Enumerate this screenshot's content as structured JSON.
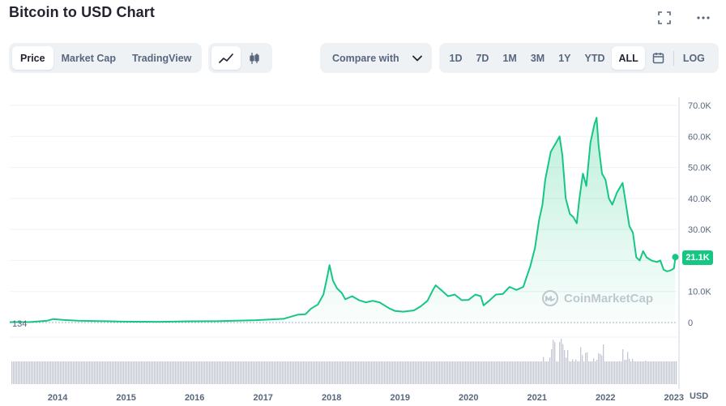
{
  "header": {
    "title": "Bitcoin to USD Chart",
    "icons": {
      "fullscreen": "fullscreen-icon",
      "more": "more-icon"
    }
  },
  "toolbar": {
    "view_tabs": [
      {
        "label": "Price",
        "active": true
      },
      {
        "label": "Market Cap",
        "active": false
      },
      {
        "label": "TradingView",
        "active": false
      }
    ],
    "chart_style_icons": [
      "line-chart-icon",
      "candlestick-icon"
    ],
    "compare_label": "Compare with",
    "ranges": [
      {
        "label": "1D",
        "active": false
      },
      {
        "label": "7D",
        "active": false
      },
      {
        "label": "1M",
        "active": false
      },
      {
        "label": "3M",
        "active": false
      },
      {
        "label": "1Y",
        "active": false
      },
      {
        "label": "YTD",
        "active": false
      },
      {
        "label": "ALL",
        "active": true
      }
    ],
    "calendar_icon": "calendar-icon",
    "log_label": "LOG"
  },
  "watermark": {
    "text": "CoinMarketCap",
    "icon": "coinmarketcap-logo-icon"
  },
  "colors": {
    "line": "#16c784",
    "area_top": "#16c784",
    "volume": "#c3c8d3",
    "grid": "#eff2f5",
    "axis_text": "#58667e"
  },
  "chart_data": {
    "type": "area",
    "currency_label": "USD",
    "start_label": "134",
    "current_price_label": "21.1K",
    "current_price": 21100,
    "ylim": [
      0,
      70000
    ],
    "y_ticks": [
      0,
      10000,
      20000,
      30000,
      40000,
      50000,
      60000,
      70000
    ],
    "y_tick_labels": [
      "0",
      "10.0K",
      "20.0K",
      "30.0K",
      "40.0K",
      "50.0K",
      "60.0K",
      "70.0K"
    ],
    "xlim": [
      2013.3,
      2023.05
    ],
    "x_ticks": [
      2014,
      2015,
      2016,
      2017,
      2018,
      2019,
      2020,
      2021,
      2022,
      2023
    ],
    "x_tick_labels": [
      "2014",
      "2015",
      "2016",
      "2017",
      "2018",
      "2019",
      "2020",
      "2021",
      "2022",
      "2023"
    ],
    "series": [
      {
        "x": [
          2013.3,
          2013.6,
          2013.85,
          2013.93,
          2014.1,
          2014.3,
          2014.6,
          2014.9,
          2015.1,
          2015.5,
          2015.9,
          2016.3,
          2016.6,
          2016.9,
          2017.1,
          2017.3,
          2017.5,
          2017.62,
          2017.7,
          2017.8,
          2017.88,
          2017.93,
          2017.97,
          2018.02,
          2018.08,
          2018.15,
          2018.2,
          2018.3,
          2018.4,
          2018.5,
          2018.6,
          2018.7,
          2018.85,
          2018.93,
          2019.05,
          2019.2,
          2019.3,
          2019.4,
          2019.48,
          2019.52,
          2019.6,
          2019.7,
          2019.8,
          2019.9,
          2020.0,
          2020.1,
          2020.18,
          2020.22,
          2020.3,
          2020.4,
          2020.5,
          2020.6,
          2020.7,
          2020.8,
          2020.9,
          2020.97,
          2021.03,
          2021.08,
          2021.12,
          2021.2,
          2021.28,
          2021.33,
          2021.37,
          2021.42,
          2021.48,
          2021.53,
          2021.58,
          2021.62,
          2021.67,
          2021.72,
          2021.78,
          2021.84,
          2021.87,
          2021.9,
          2021.95,
          2022.0,
          2022.05,
          2022.1,
          2022.17,
          2022.25,
          2022.3,
          2022.35,
          2022.4,
          2022.45,
          2022.5,
          2022.55,
          2022.6,
          2022.67,
          2022.75,
          2022.8,
          2022.85,
          2022.9,
          2022.95,
          2023.0,
          2023.02
        ],
        "values": [
          134,
          150,
          600,
          1100,
          800,
          600,
          480,
          350,
          260,
          240,
          400,
          420,
          600,
          750,
          1000,
          1200,
          2500,
          2700,
          4500,
          5800,
          9000,
          14000,
          18500,
          13500,
          11000,
          9500,
          7500,
          8500,
          7200,
          6500,
          7000,
          6500,
          4500,
          3700,
          3500,
          3900,
          5200,
          7000,
          10500,
          12000,
          10500,
          8500,
          9000,
          7200,
          7300,
          9000,
          8500,
          5500,
          7000,
          9000,
          9200,
          11500,
          10500,
          11500,
          18000,
          24000,
          33000,
          38000,
          46000,
          55000,
          58000,
          60000,
          54000,
          40000,
          35000,
          34000,
          32000,
          40000,
          48000,
          44000,
          58000,
          64000,
          66000,
          57000,
          48000,
          46000,
          40000,
          38000,
          42000,
          45000,
          38000,
          31000,
          29000,
          21000,
          20000,
          23000,
          21000,
          20000,
          19500,
          20000,
          17000,
          16500,
          16800,
          17500,
          21100
        ]
      }
    ],
    "volume_note": "relative trading volume bars beneath the price area"
  }
}
